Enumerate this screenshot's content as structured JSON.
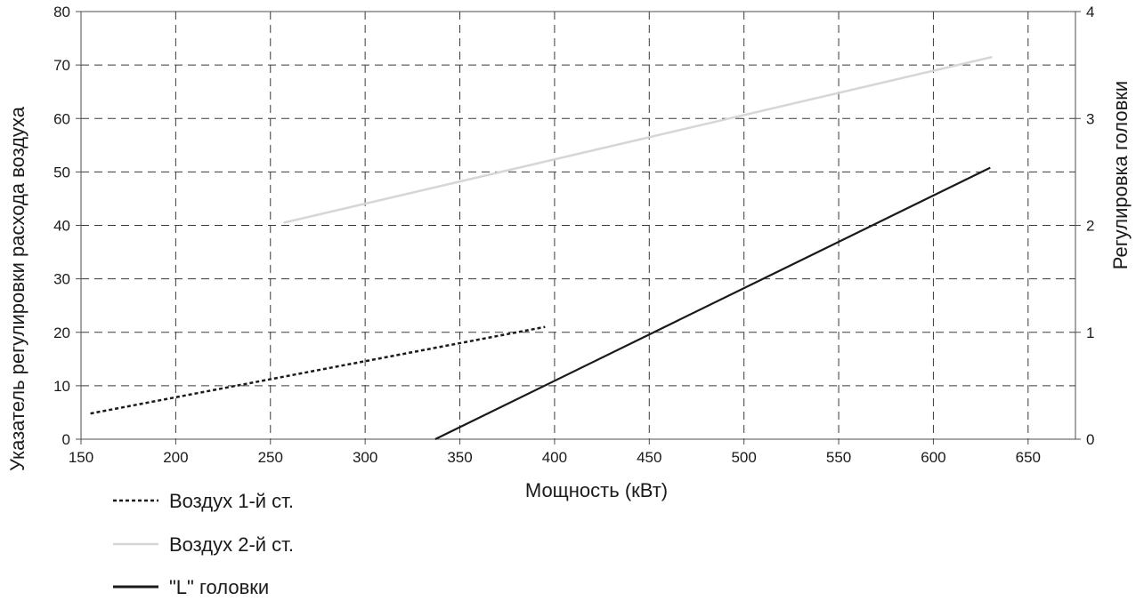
{
  "chart_data": {
    "type": "line",
    "title": "",
    "xlabel": "Мощность (кВт)",
    "ylabel": "Указатель регулировки расхода воздуха",
    "y2label": "Регулировка головки",
    "xlim": [
      150,
      675
    ],
    "ylim": [
      0,
      80
    ],
    "y2lim": [
      0,
      4
    ],
    "xticks": [
      "150",
      "200",
      "250",
      "300",
      "350",
      "400",
      "450",
      "500",
      "550",
      "600",
      "650"
    ],
    "yticks": [
      "0",
      "10",
      "20",
      "30",
      "40",
      "50",
      "60",
      "70",
      "80"
    ],
    "y2ticks": [
      "0",
      "1",
      "2",
      "3",
      "4"
    ],
    "grid": true,
    "legend_position": "bottom-left",
    "series": [
      {
        "name": "Воздух 1-й ст.",
        "axis": "left",
        "style": "dotted",
        "color": "#1a1a1a",
        "x": [
          155,
          395
        ],
        "y": [
          4.8,
          21
        ]
      },
      {
        "name": "Воздух 2-й ст.",
        "axis": "left",
        "style": "solid",
        "color": "#d6d6d6",
        "x": [
          257,
          631
        ],
        "y": [
          40.5,
          71.5
        ]
      },
      {
        "name": "\"L\" головки",
        "axis": "right",
        "style": "solid",
        "color": "#1a1a1a",
        "x": [
          337,
          630
        ],
        "y": [
          0,
          2.54
        ]
      }
    ]
  }
}
